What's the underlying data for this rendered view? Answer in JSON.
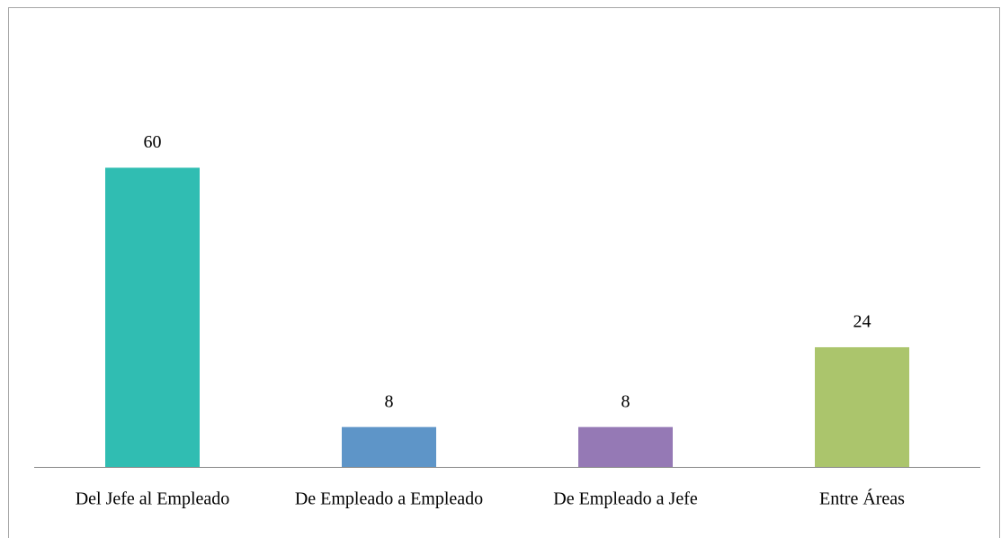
{
  "chart_data": {
    "type": "bar",
    "categories": [
      "Del Jefe al Empleado",
      "De Empleado a Empleado",
      "De Empleado a Jefe",
      "Entre Áreas"
    ],
    "values": [
      60,
      8,
      8,
      24
    ],
    "colors": [
      "#30bdb2",
      "#5e95c8",
      "#9579b5",
      "#abc56c"
    ],
    "ylim": [
      0,
      70
    ]
  }
}
